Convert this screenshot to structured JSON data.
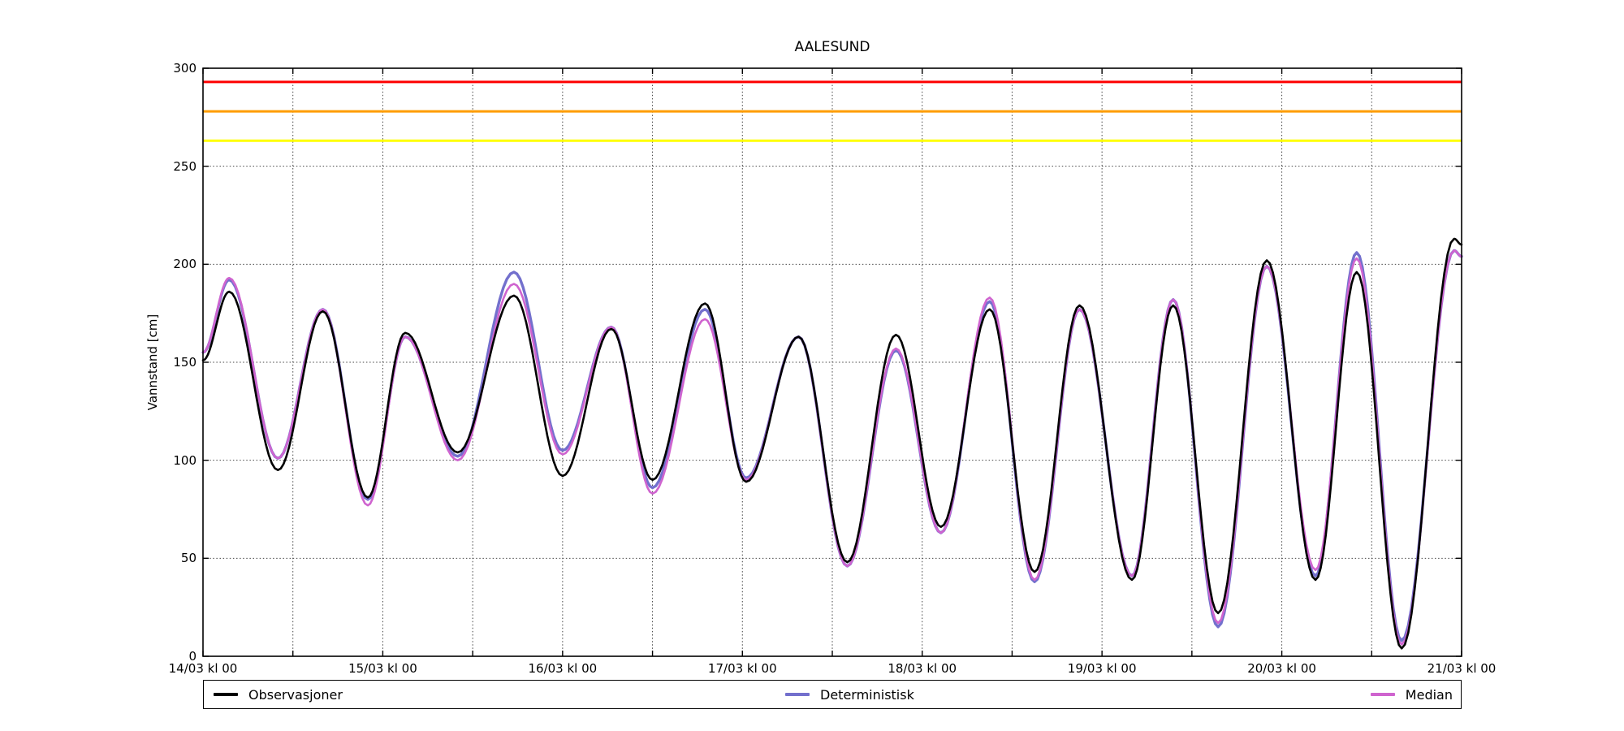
{
  "title": "AALESUND",
  "y_axis": {
    "label": "Vannstand [cm]",
    "min": 0,
    "max": 300,
    "tick_step": 50
  },
  "x_axis": {
    "total_hours": 168,
    "grid_step_hours": 12,
    "ticks": [
      {
        "hour": 0,
        "label": "14/03 kl 00"
      },
      {
        "hour": 24,
        "label": "15/03 kl 00"
      },
      {
        "hour": 48,
        "label": "16/03 kl 00"
      },
      {
        "hour": 72,
        "label": "17/03 kl 00"
      },
      {
        "hour": 96,
        "label": "18/03 kl 00"
      },
      {
        "hour": 120,
        "label": "19/03 kl 00"
      },
      {
        "hour": 144,
        "label": "20/03 kl 00"
      },
      {
        "hour": 168,
        "label": "21/03 kl 00"
      }
    ]
  },
  "reference_lines": [
    {
      "name": "red-warning-line",
      "color": "#fe0000",
      "value": 293,
      "width": 3
    },
    {
      "name": "orange-warning-line",
      "color": "#ff9d00",
      "value": 278,
      "width": 3
    },
    {
      "name": "yellow-warning-line",
      "color": "#ffff00",
      "value": 263,
      "width": 3
    }
  ],
  "legend": [
    {
      "label": "Observasjoner",
      "color": "#000000"
    },
    {
      "label": "Deterministisk",
      "color": "#7370cd"
    },
    {
      "label": "Median",
      "color": "#cf64cf"
    }
  ],
  "chart_data": {
    "type": "line",
    "title": "AALESUND",
    "xlabel": "",
    "ylabel": "Vannstand [cm]",
    "xlim": [
      0,
      168
    ],
    "ylim": [
      0,
      300
    ],
    "grid": "dotted, x every 12 h, y every 50 cm",
    "legend_position": "bottom, expanded 3 columns",
    "x_unit": "hours since 14/03 kl 00",
    "interpolation": "cosine between listed tidal extrema",
    "x": [
      0,
      3.5,
      10,
      16,
      22,
      27,
      34,
      41.5,
      48,
      54.5,
      60,
      67,
      72.5,
      79.5,
      86,
      92.5,
      98.5,
      105,
      111,
      117,
      124,
      129.5,
      135.5,
      142,
      148.5,
      154,
      160,
      167,
      168
    ],
    "series": [
      {
        "name": "Observasjoner",
        "color": "#000000",
        "width": 2.6,
        "values": [
          151,
          186,
          95,
          176,
          81,
          165,
          104,
          184,
          92,
          167,
          90,
          180,
          89,
          163,
          48,
          164,
          66,
          177,
          43,
          179,
          39,
          179,
          22,
          202,
          39,
          196,
          4,
          213,
          210
        ]
      },
      {
        "name": "Deterministisk",
        "color": "#7370cd",
        "width": 3.4,
        "values": [
          155,
          192,
          101,
          177,
          80,
          163,
          102,
          196,
          105,
          168,
          86,
          177,
          91,
          163,
          46,
          156,
          63,
          181,
          38,
          177,
          41,
          182,
          15,
          199,
          41,
          206,
          8,
          207,
          204
        ]
      },
      {
        "name": "Median",
        "color": "#cf64cf",
        "width": 2.6,
        "values": [
          155,
          193,
          101,
          177,
          77,
          163,
          100,
          190,
          103,
          168,
          83,
          172,
          90,
          163,
          46,
          157,
          63,
          183,
          39,
          177,
          41,
          182,
          17,
          199,
          44,
          203,
          6,
          207,
          204
        ]
      }
    ]
  }
}
